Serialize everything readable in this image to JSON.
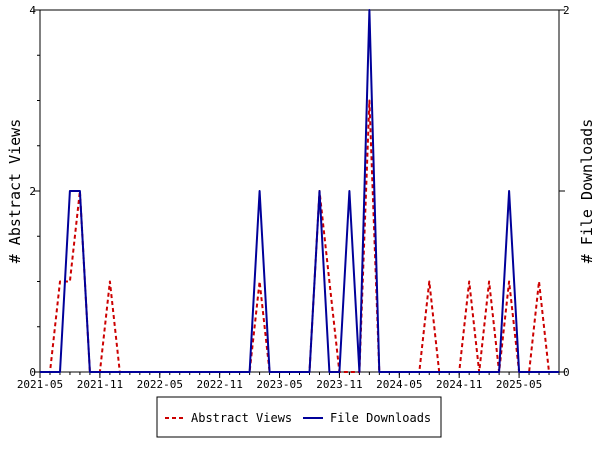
{
  "chart_data": {
    "type": "line",
    "x_labels": [
      "2021-05",
      "2021-11",
      "2022-05",
      "2022-11",
      "2023-05",
      "2023-11",
      "2024-05",
      "2024-11",
      "2025-05"
    ],
    "x_label_month_index": [
      0,
      6,
      12,
      18,
      24,
      30,
      36,
      42,
      48
    ],
    "x_range": [
      0,
      52
    ],
    "y_left": {
      "label": "# Abstract Views",
      "ticks": [
        "0",
        "2",
        "4"
      ],
      "range": [
        0,
        4
      ]
    },
    "y_right": {
      "label": "# File Downloads",
      "ticks": [
        "0",
        "1",
        "2"
      ],
      "range": [
        0,
        2
      ]
    },
    "series": [
      {
        "name": "Abstract Views",
        "axis": "left",
        "color": "#cc0000",
        "dash": true,
        "values": [
          0,
          0,
          1,
          1,
          2,
          0,
          0,
          1,
          0,
          0,
          0,
          0,
          0,
          0,
          0,
          0,
          0,
          0,
          0,
          0,
          0,
          0,
          1,
          0,
          0,
          0,
          0,
          0,
          2,
          1,
          0,
          0,
          0,
          3,
          0,
          0,
          0,
          0,
          0,
          1,
          0,
          0,
          0,
          1,
          0,
          1,
          0,
          1,
          0,
          0,
          1,
          0,
          0
        ]
      },
      {
        "name": "File Downloads",
        "axis": "right",
        "color": "#000099",
        "dash": false,
        "values": [
          0,
          0,
          0,
          1,
          1,
          0,
          0,
          0,
          0,
          0,
          0,
          0,
          0,
          0,
          0,
          0,
          0,
          0,
          0,
          0,
          0,
          0,
          1,
          0,
          0,
          0,
          0,
          0,
          1,
          0,
          0,
          1,
          0,
          2,
          0,
          0,
          0,
          0,
          0,
          0,
          0,
          0,
          0,
          0,
          0,
          0,
          0,
          1,
          0,
          0,
          0,
          0,
          0
        ]
      }
    ],
    "legend": {
      "placement": "bottom",
      "items": [
        "Abstract Views",
        "File Downloads"
      ]
    },
    "grid": false
  }
}
